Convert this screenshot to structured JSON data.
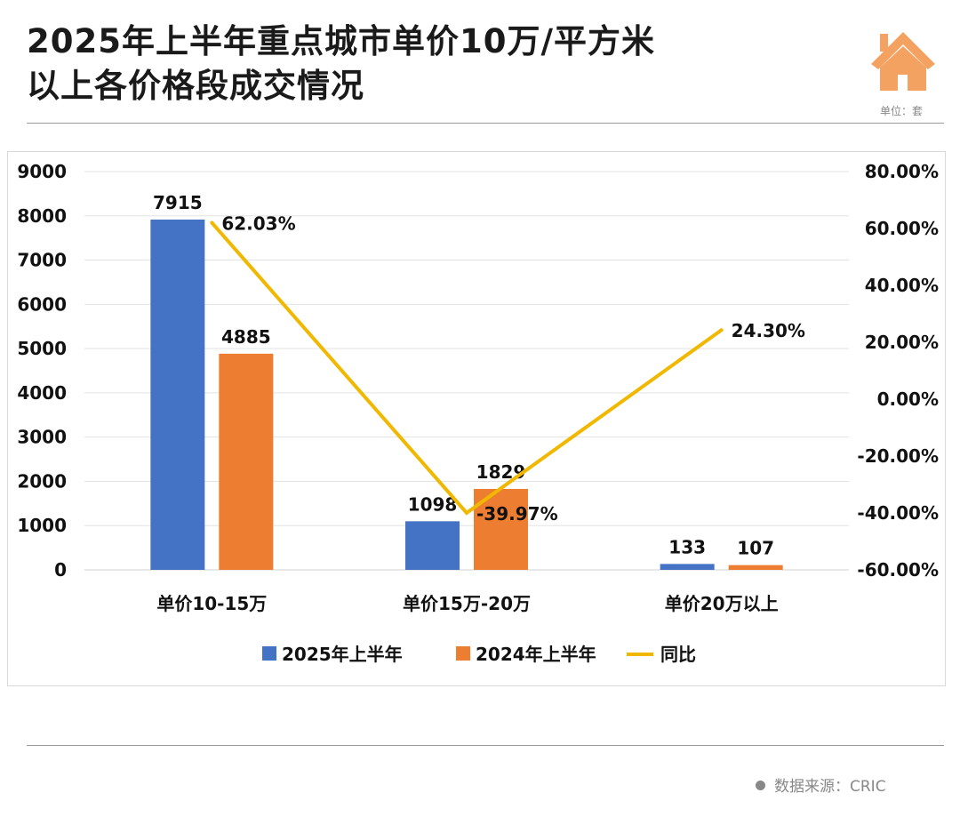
{
  "header": {
    "title_line1": "2025年上半年重点城市单价10万/平方米",
    "title_line2": "以上各价格段成交情况",
    "unit": "单位：套",
    "icon": "house-icon"
  },
  "footer": {
    "source": "数据来源：CRIC"
  },
  "colors": {
    "series2025": "#4472C4",
    "series2024": "#ED7D31",
    "yoy": "#F0B800",
    "house": "#F4A261"
  },
  "chart_data": {
    "type": "bar",
    "categories": [
      "单价10-15万",
      "单价15万-20万",
      "单价20万以上"
    ],
    "series": [
      {
        "name": "2025年上半年",
        "values": [
          7915,
          1098,
          133
        ],
        "axis": "left",
        "type": "bar"
      },
      {
        "name": "2024年上半年",
        "values": [
          4885,
          1829,
          107
        ],
        "axis": "left",
        "type": "bar"
      },
      {
        "name": "同比",
        "values": [
          62.03,
          -39.97,
          24.3
        ],
        "labels": [
          "62.03%",
          "-39.97%",
          "24.30%"
        ],
        "axis": "right",
        "type": "line"
      }
    ],
    "ylim": [
      0,
      9000
    ],
    "yticks": [
      "0",
      "1000",
      "2000",
      "3000",
      "4000",
      "5000",
      "6000",
      "7000",
      "8000",
      "9000"
    ],
    "y2lim": [
      -60,
      80
    ],
    "y2ticks": [
      "-60.00%",
      "-40.00%",
      "-20.00%",
      "0.00%",
      "20.00%",
      "40.00%",
      "60.00%",
      "80.00%"
    ],
    "legend_position": "bottom",
    "grid": true
  }
}
